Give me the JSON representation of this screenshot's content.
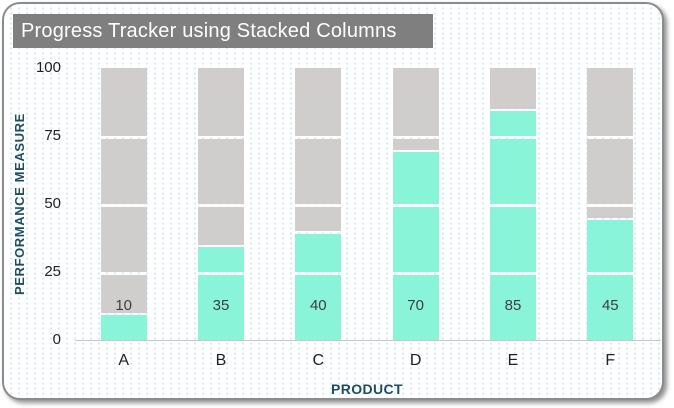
{
  "window": {
    "title": "Progress Tracker using Stacked Columns"
  },
  "chart_data": {
    "type": "bar",
    "subtype": "progress-stacked-columns",
    "title": "Progress Tracker using Stacked Columns",
    "categories": [
      "A",
      "B",
      "C",
      "D",
      "E",
      "F"
    ],
    "values": [
      10,
      35,
      40,
      70,
      85,
      45
    ],
    "data_labels": [
      "10",
      "35",
      "40",
      "70",
      "85",
      "45"
    ],
    "xlabel": "PRODUCT",
    "ylabel": "PERFORMANCE MEASURE",
    "ylim": [
      0,
      100
    ],
    "yticks": [
      0,
      25,
      50,
      75,
      100
    ],
    "segment_size": 25,
    "grid": false,
    "legend": null,
    "colors": {
      "achieved": "#8AF4D8",
      "remaining": "#CFCECD",
      "segment_gap": "#FFFFFF",
      "title_bg": "#7F7F7F",
      "title_text": "#FFFFFF",
      "axis_title_text": "#1D4E5E",
      "tick_text": "#212121",
      "value_label_text": "#3E3E3E",
      "card_border": "#8B8B8B",
      "axis_line": "#C6C6C6",
      "background_dots": "#D2EAF3"
    }
  }
}
